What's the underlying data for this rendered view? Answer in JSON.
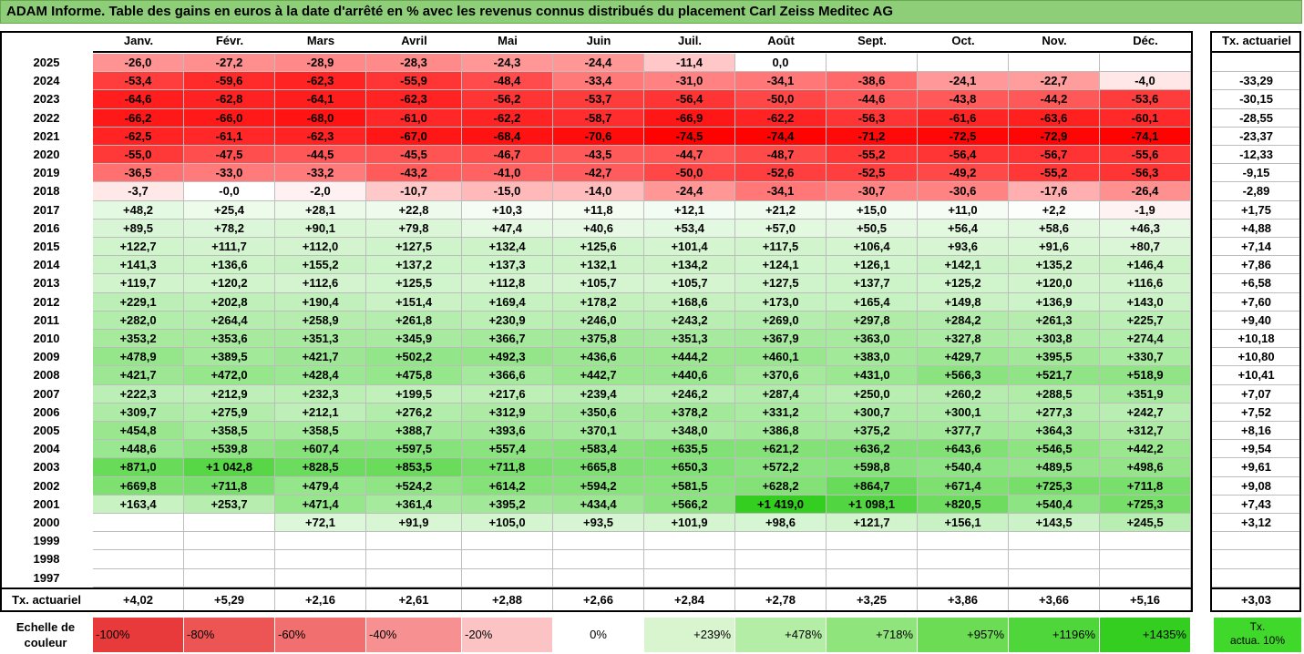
{
  "title": "ADAM Informe. Table des gains en euros à la date d'arrêté en % avec les revenus connus distribués du placement Carl Zeiss Meditec AG",
  "months": [
    "Janv.",
    "Févr.",
    "Mars",
    "Avril",
    "Mai",
    "Juin",
    "Juil.",
    "Août",
    "Sept.",
    "Oct.",
    "Nov.",
    "Déc."
  ],
  "rate_header": "Tx. actuariel",
  "rows": [
    {
      "year": "2025",
      "values": [
        "-26,0",
        "-27,2",
        "-28,9",
        "-28,3",
        "-24,3",
        "-24,4",
        "-11,4",
        "0,0",
        "",
        "",
        "",
        ""
      ],
      "rate": ""
    },
    {
      "year": "2024",
      "values": [
        "-53,4",
        "-59,6",
        "-62,3",
        "-55,9",
        "-48,4",
        "-33,4",
        "-31,0",
        "-34,1",
        "-38,6",
        "-24,1",
        "-22,7",
        "-4,0"
      ],
      "rate": "-33,29"
    },
    {
      "year": "2023",
      "values": [
        "-64,6",
        "-62,8",
        "-64,1",
        "-62,3",
        "-56,2",
        "-53,7",
        "-56,4",
        "-50,0",
        "-44,6",
        "-43,8",
        "-44,2",
        "-53,6"
      ],
      "rate": "-30,15"
    },
    {
      "year": "2022",
      "values": [
        "-66,2",
        "-66,0",
        "-68,0",
        "-61,0",
        "-62,2",
        "-58,7",
        "-66,9",
        "-62,2",
        "-56,3",
        "-61,6",
        "-63,6",
        "-60,1"
      ],
      "rate": "-28,55"
    },
    {
      "year": "2021",
      "values": [
        "-62,5",
        "-61,1",
        "-62,3",
        "-67,0",
        "-68,4",
        "-70,6",
        "-74,5",
        "-74,4",
        "-71,2",
        "-72,5",
        "-72,9",
        "-74,1"
      ],
      "rate": "-23,37"
    },
    {
      "year": "2020",
      "values": [
        "-55,0",
        "-47,5",
        "-44,5",
        "-45,5",
        "-46,7",
        "-43,5",
        "-44,7",
        "-48,7",
        "-55,2",
        "-56,4",
        "-56,7",
        "-55,6"
      ],
      "rate": "-12,33"
    },
    {
      "year": "2019",
      "values": [
        "-36,5",
        "-33,0",
        "-33,2",
        "-43,2",
        "-41,0",
        "-42,7",
        "-50,0",
        "-52,6",
        "-52,5",
        "-49,2",
        "-55,2",
        "-56,3"
      ],
      "rate": "-9,15"
    },
    {
      "year": "2018",
      "values": [
        "-3,7",
        "-0,0",
        "-2,0",
        "-10,7",
        "-15,0",
        "-14,0",
        "-24,4",
        "-34,1",
        "-30,7",
        "-30,6",
        "-17,6",
        "-26,4"
      ],
      "rate": "-2,89"
    },
    {
      "year": "2017",
      "values": [
        "+48,2",
        "+25,4",
        "+28,1",
        "+22,8",
        "+10,3",
        "+11,8",
        "+12,1",
        "+21,2",
        "+15,0",
        "+11,0",
        "+2,2",
        "-1,9"
      ],
      "rate": "+1,75"
    },
    {
      "year": "2016",
      "values": [
        "+89,5",
        "+78,2",
        "+90,1",
        "+79,8",
        "+47,4",
        "+40,6",
        "+53,4",
        "+57,0",
        "+50,5",
        "+56,4",
        "+58,6",
        "+46,3"
      ],
      "rate": "+4,88"
    },
    {
      "year": "2015",
      "values": [
        "+122,7",
        "+111,7",
        "+112,0",
        "+127,5",
        "+132,4",
        "+125,6",
        "+101,4",
        "+117,5",
        "+106,4",
        "+93,6",
        "+91,6",
        "+80,7"
      ],
      "rate": "+7,14"
    },
    {
      "year": "2014",
      "values": [
        "+141,3",
        "+136,6",
        "+155,2",
        "+137,2",
        "+137,3",
        "+132,1",
        "+134,2",
        "+124,1",
        "+126,1",
        "+142,1",
        "+135,2",
        "+146,4"
      ],
      "rate": "+7,86"
    },
    {
      "year": "2013",
      "values": [
        "+119,7",
        "+120,2",
        "+112,6",
        "+125,5",
        "+112,8",
        "+105,7",
        "+105,7",
        "+127,5",
        "+137,7",
        "+125,2",
        "+120,0",
        "+116,6"
      ],
      "rate": "+6,58"
    },
    {
      "year": "2012",
      "values": [
        "+229,1",
        "+202,8",
        "+190,4",
        "+151,4",
        "+169,4",
        "+178,2",
        "+168,6",
        "+173,0",
        "+165,4",
        "+149,8",
        "+136,9",
        "+143,0"
      ],
      "rate": "+7,60"
    },
    {
      "year": "2011",
      "values": [
        "+282,0",
        "+264,4",
        "+258,9",
        "+261,8",
        "+230,9",
        "+246,0",
        "+243,2",
        "+269,0",
        "+297,8",
        "+284,2",
        "+261,3",
        "+225,7"
      ],
      "rate": "+9,40"
    },
    {
      "year": "2010",
      "values": [
        "+353,2",
        "+353,6",
        "+351,3",
        "+345,9",
        "+366,7",
        "+375,8",
        "+351,3",
        "+367,9",
        "+363,0",
        "+327,8",
        "+303,8",
        "+274,4"
      ],
      "rate": "+10,18"
    },
    {
      "year": "2009",
      "values": [
        "+478,9",
        "+389,5",
        "+421,7",
        "+502,2",
        "+492,3",
        "+436,6",
        "+444,2",
        "+460,1",
        "+383,0",
        "+429,7",
        "+395,5",
        "+330,7"
      ],
      "rate": "+10,80"
    },
    {
      "year": "2008",
      "values": [
        "+421,7",
        "+472,0",
        "+428,4",
        "+475,8",
        "+366,6",
        "+442,7",
        "+440,6",
        "+370,6",
        "+431,0",
        "+566,3",
        "+521,7",
        "+518,9"
      ],
      "rate": "+10,41"
    },
    {
      "year": "2007",
      "values": [
        "+222,3",
        "+212,9",
        "+232,3",
        "+199,5",
        "+217,6",
        "+239,4",
        "+246,2",
        "+287,4",
        "+250,0",
        "+260,2",
        "+288,5",
        "+351,9"
      ],
      "rate": "+7,07"
    },
    {
      "year": "2006",
      "values": [
        "+309,7",
        "+275,9",
        "+212,1",
        "+276,2",
        "+312,9",
        "+350,6",
        "+378,2",
        "+331,2",
        "+300,7",
        "+300,1",
        "+277,3",
        "+242,7"
      ],
      "rate": "+7,52"
    },
    {
      "year": "2005",
      "values": [
        "+454,8",
        "+358,5",
        "+358,5",
        "+388,7",
        "+393,6",
        "+370,1",
        "+348,0",
        "+386,8",
        "+375,2",
        "+377,7",
        "+364,3",
        "+312,7"
      ],
      "rate": "+8,16"
    },
    {
      "year": "2004",
      "values": [
        "+448,6",
        "+539,8",
        "+607,4",
        "+597,5",
        "+557,4",
        "+583,4",
        "+635,5",
        "+621,2",
        "+636,2",
        "+643,6",
        "+546,5",
        "+442,2"
      ],
      "rate": "+9,54"
    },
    {
      "year": "2003",
      "values": [
        "+871,0",
        "+1 042,8",
        "+828,5",
        "+853,5",
        "+711,8",
        "+665,8",
        "+650,3",
        "+572,2",
        "+598,8",
        "+540,4",
        "+489,5",
        "+498,6"
      ],
      "rate": "+9,61"
    },
    {
      "year": "2002",
      "values": [
        "+669,8",
        "+711,8",
        "+479,4",
        "+524,2",
        "+614,2",
        "+594,2",
        "+581,5",
        "+628,2",
        "+864,7",
        "+671,4",
        "+725,3",
        "+711,8"
      ],
      "rate": "+9,08"
    },
    {
      "year": "2001",
      "values": [
        "+163,4",
        "+253,7",
        "+471,4",
        "+361,4",
        "+395,2",
        "+434,4",
        "+566,2",
        "+1 419,0",
        "+1 098,1",
        "+820,5",
        "+540,4",
        "+725,3"
      ],
      "rate": "+7,43"
    },
    {
      "year": "2000",
      "values": [
        "",
        "",
        "+72,1",
        "+91,9",
        "+105,0",
        "+93,5",
        "+101,9",
        "+98,6",
        "+121,7",
        "+156,1",
        "+143,5",
        "+245,5"
      ],
      "rate": "+3,12"
    },
    {
      "year": "1999",
      "values": [
        "",
        "",
        "",
        "",
        "",
        "",
        "",
        "",
        "",
        "",
        "",
        ""
      ],
      "rate": ""
    },
    {
      "year": "1998",
      "values": [
        "",
        "",
        "",
        "",
        "",
        "",
        "",
        "",
        "",
        "",
        "",
        ""
      ],
      "rate": ""
    },
    {
      "year": "1997",
      "values": [
        "",
        "",
        "",
        "",
        "",
        "",
        "",
        "",
        "",
        "",
        "",
        ""
      ],
      "rate": ""
    }
  ],
  "footer": {
    "label": "Tx. actuariel",
    "values": [
      "+4,02",
      "+5,29",
      "+2,16",
      "+2,61",
      "+2,88",
      "+2,66",
      "+2,84",
      "+2,78",
      "+3,25",
      "+3,86",
      "+3,66",
      "+5,16"
    ],
    "rate": "+3,03"
  },
  "legend": {
    "label": "Echelle de\ncouleur",
    "items": [
      {
        "text": "-100%",
        "color": "#e83a3a",
        "align": "left"
      },
      {
        "text": "-80%",
        "color": "#ed5555",
        "align": "left"
      },
      {
        "text": "-60%",
        "color": "#f26f6f",
        "align": "left"
      },
      {
        "text": "-40%",
        "color": "#f79191",
        "align": "left"
      },
      {
        "text": "-20%",
        "color": "#fbc3c3",
        "align": "left"
      },
      {
        "text": "0%",
        "color": "#ffffff",
        "align": "center"
      },
      {
        "text": "+239%",
        "color": "#d8f5d0",
        "align": "right"
      },
      {
        "text": "+478%",
        "color": "#b4eda6",
        "align": "right"
      },
      {
        "text": "+718%",
        "color": "#90e47c",
        "align": "right"
      },
      {
        "text": "+957%",
        "color": "#6cdc55",
        "align": "right"
      },
      {
        "text": "+1196%",
        "color": "#4fd63a",
        "align": "right"
      },
      {
        "text": "+1435%",
        "color": "#33ce1f",
        "align": "right"
      }
    ],
    "rate_box": {
      "text": "Tx.\nactua. 10%",
      "color": "#40d82a"
    }
  },
  "colors": {
    "title_bg": "#8fce78",
    "negative_max": "#ff0000",
    "positive_max": "#3ad82a",
    "neutral": "#ffffff"
  }
}
